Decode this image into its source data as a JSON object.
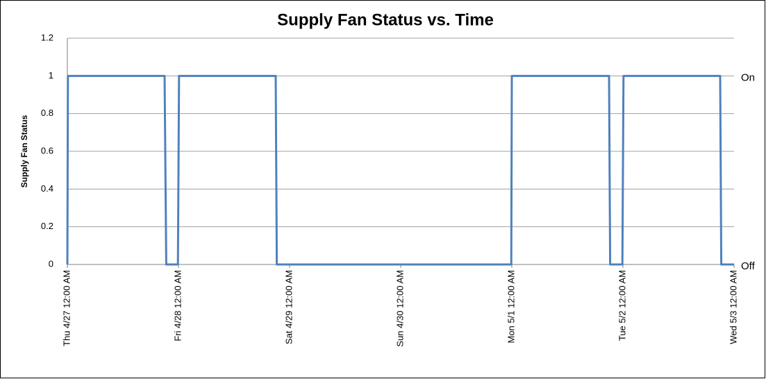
{
  "chart_data": {
    "type": "line",
    "title": "Supply Fan Status vs. Time",
    "y_label": "Supply Fan Status",
    "x": [
      0,
      0.005,
      0.875,
      0.89,
      0.995,
      1.005,
      1.875,
      1.885,
      3.995,
      4.0,
      4.875,
      4.885,
      4.995,
      5.005,
      5.875,
      5.885,
      6
    ],
    "series": [
      {
        "name": "Supply Fan Status",
        "color": "#4f81bd",
        "values": [
          0,
          1,
          1,
          0,
          0,
          1,
          1,
          0,
          0,
          1,
          1,
          0,
          0,
          1,
          1,
          0,
          0
        ]
      }
    ],
    "xlim": [
      0,
      6
    ],
    "xticks": [
      {
        "value": 0,
        "label": "Thu 4/27 12:00 AM"
      },
      {
        "value": 1,
        "label": "Fri 4/28 12:00 AM"
      },
      {
        "value": 2,
        "label": "Sat 4/29 12:00 AM"
      },
      {
        "value": 3,
        "label": "Sun 4/30 12:00 AM"
      },
      {
        "value": 4,
        "label": "Mon 5/1 12:00 AM"
      },
      {
        "value": 5,
        "label": "Tue 5/2 12:00 AM"
      },
      {
        "value": 6,
        "label": "Wed 5/3 12:00 AM"
      }
    ],
    "ylim": [
      0,
      1.2
    ],
    "yticks": [
      0,
      0.2,
      0.4,
      0.6,
      0.8,
      1,
      1.2
    ],
    "grid": true,
    "annotations": [
      {
        "text": "On",
        "y": 1
      },
      {
        "text": "Off",
        "y": 0
      }
    ]
  }
}
